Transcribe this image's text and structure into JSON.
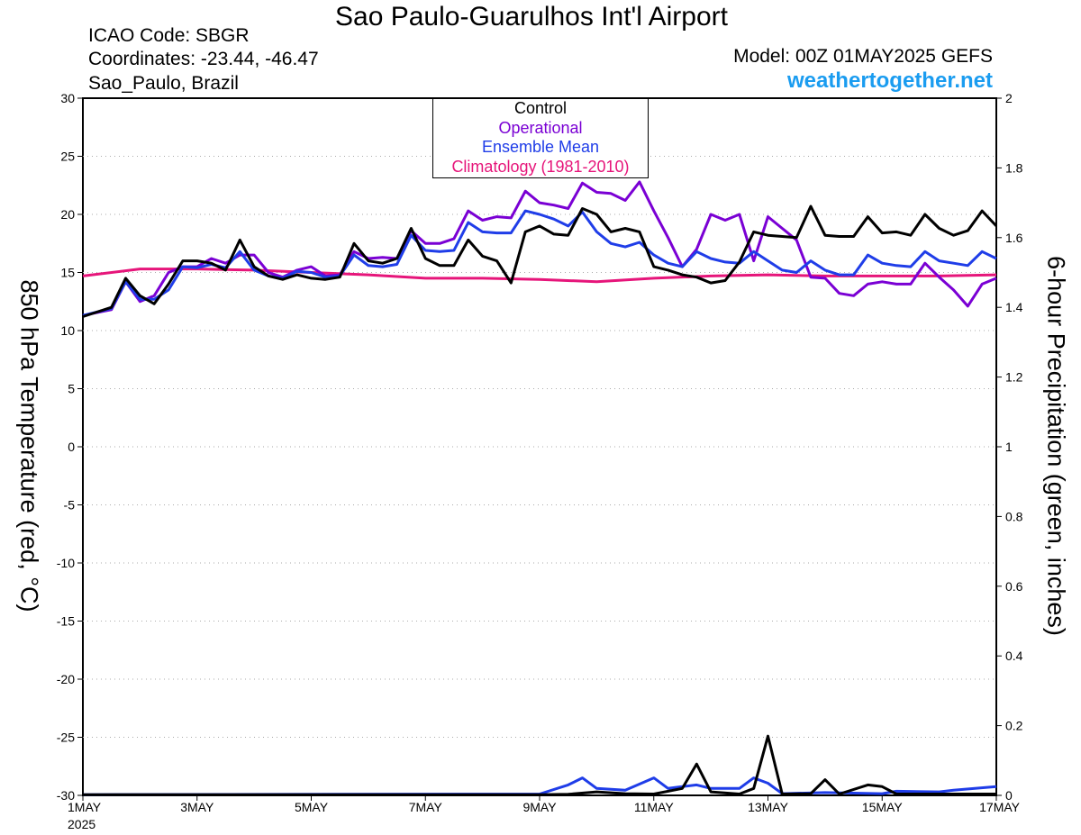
{
  "header": {
    "title": "Sao Paulo-Guarulhos Int'l Airport",
    "icao": "ICAO Code: SBGR",
    "coords": "Coordinates: -23.44, -46.47",
    "place": "Sao_Paulo, Brazil",
    "model": "Model: 00Z 01MAY2025 GEFS",
    "site": "weathertogether.net"
  },
  "legend": {
    "control": "Control",
    "operational": "Operational",
    "ensemble_mean": "Ensemble Mean",
    "climatology": "Climatology (1981-2010)"
  },
  "colors": {
    "control": "#000000",
    "operational": "#7a00d4",
    "ensemble_mean": "#1f3de8",
    "climatology": "#e6157a",
    "members_temp": "#f0504a",
    "members_precip": "#3fd23f",
    "site": "#1a9cf0"
  },
  "chart_data": {
    "type": "line",
    "ylabel_left": "850 hPa Temperature (red, °C)",
    "ylabel_right": "6-hour Precipitation (green, inches)",
    "ylim_left": [
      -30,
      30
    ],
    "ylim_right": [
      0,
      2
    ],
    "yticks_left": [
      "30",
      "25",
      "20",
      "15",
      "10",
      "5",
      "0",
      "-5",
      "-10",
      "-15",
      "-20",
      "-25",
      "-30"
    ],
    "yticks_right": [
      "2",
      "1.8",
      "1.6",
      "1.4",
      "1.2",
      "1",
      "0.8",
      "0.6",
      "0.4",
      "0.2",
      "0"
    ],
    "x_days": [
      1,
      17
    ],
    "x_ticks": [
      {
        "day": 1,
        "label": "1MAY",
        "sub": "2025"
      },
      {
        "day": 3,
        "label": "3MAY"
      },
      {
        "day": 5,
        "label": "5MAY"
      },
      {
        "day": 7,
        "label": "7MAY"
      },
      {
        "day": 9,
        "label": "9MAY"
      },
      {
        "day": 11,
        "label": "11MAY"
      },
      {
        "day": 13,
        "label": "13MAY"
      },
      {
        "day": 15,
        "label": "15MAY"
      },
      {
        "day": 17,
        "label": "17MAY"
      }
    ],
    "grid": "dotted horizontal",
    "legend_position": "top-center",
    "temperature": {
      "control": [
        [
          1,
          11.2
        ],
        [
          1.5,
          12
        ],
        [
          1.75,
          14.5
        ],
        [
          2,
          13
        ],
        [
          2.25,
          12.3
        ],
        [
          2.5,
          14
        ],
        [
          2.75,
          16
        ],
        [
          3,
          16
        ],
        [
          3.25,
          15.8
        ],
        [
          3.5,
          15.2
        ],
        [
          3.75,
          17.8
        ],
        [
          4,
          15.5
        ],
        [
          4.25,
          14.7
        ],
        [
          4.5,
          14.4
        ],
        [
          4.75,
          14.8
        ],
        [
          5,
          14.5
        ],
        [
          5.25,
          14.4
        ],
        [
          5.5,
          14.6
        ],
        [
          5.75,
          17.5
        ],
        [
          6,
          16
        ],
        [
          6.25,
          15.8
        ],
        [
          6.5,
          16.2
        ],
        [
          6.75,
          18.8
        ],
        [
          7,
          16.2
        ],
        [
          7.25,
          15.6
        ],
        [
          7.5,
          15.6
        ],
        [
          7.75,
          17.8
        ],
        [
          8,
          16.4
        ],
        [
          8.25,
          16
        ],
        [
          8.5,
          14.1
        ],
        [
          8.75,
          18.5
        ],
        [
          9,
          19
        ],
        [
          9.25,
          18.3
        ],
        [
          9.5,
          18.2
        ],
        [
          9.75,
          20.5
        ],
        [
          10,
          20
        ],
        [
          10.25,
          18.5
        ],
        [
          10.5,
          18.8
        ],
        [
          10.75,
          18.5
        ],
        [
          11,
          15.5
        ],
        [
          11.25,
          15.2
        ],
        [
          11.5,
          14.8
        ],
        [
          11.75,
          14.6
        ],
        [
          12,
          14.1
        ],
        [
          12.25,
          14.3
        ],
        [
          12.5,
          15.9
        ],
        [
          12.75,
          18.5
        ],
        [
          13,
          18.2
        ],
        [
          13.25,
          18.1
        ],
        [
          13.5,
          18
        ],
        [
          13.75,
          20.7
        ],
        [
          14,
          18.2
        ],
        [
          14.25,
          18.1
        ],
        [
          14.5,
          18.1
        ],
        [
          14.75,
          19.8
        ],
        [
          15,
          18.4
        ],
        [
          15.25,
          18.5
        ],
        [
          15.5,
          18.2
        ],
        [
          15.75,
          20
        ],
        [
          16,
          18.8
        ],
        [
          16.25,
          18.2
        ],
        [
          16.5,
          18.6
        ],
        [
          16.75,
          20.3
        ],
        [
          17,
          19
        ]
      ],
      "operational": [
        [
          1,
          11.3
        ],
        [
          1.5,
          11.8
        ],
        [
          1.75,
          14.2
        ],
        [
          2,
          12.5
        ],
        [
          2.25,
          13
        ],
        [
          2.5,
          15
        ],
        [
          2.75,
          15.5
        ],
        [
          3,
          15.5
        ],
        [
          3.25,
          16.2
        ],
        [
          3.5,
          15.8
        ],
        [
          3.75,
          16.5
        ],
        [
          4,
          16.5
        ],
        [
          4.25,
          15
        ],
        [
          4.5,
          14.6
        ],
        [
          4.75,
          15.2
        ],
        [
          5,
          15.5
        ],
        [
          5.25,
          14.7
        ],
        [
          5.5,
          14.8
        ],
        [
          5.75,
          16.8
        ],
        [
          6,
          16.2
        ],
        [
          6.25,
          16.3
        ],
        [
          6.5,
          16.2
        ],
        [
          6.75,
          18.6
        ],
        [
          7,
          17.5
        ],
        [
          7.25,
          17.5
        ],
        [
          7.5,
          17.9
        ],
        [
          7.75,
          20.3
        ],
        [
          8,
          19.5
        ],
        [
          8.25,
          19.8
        ],
        [
          8.5,
          19.7
        ],
        [
          8.75,
          22
        ],
        [
          9,
          21
        ],
        [
          9.25,
          20.8
        ],
        [
          9.5,
          20.5
        ],
        [
          9.75,
          22.7
        ],
        [
          10,
          21.9
        ],
        [
          10.25,
          21.8
        ],
        [
          10.5,
          21.2
        ],
        [
          10.75,
          22.8
        ],
        [
          11,
          20.3
        ],
        [
          11.25,
          18
        ],
        [
          11.5,
          15.5
        ],
        [
          11.75,
          17
        ],
        [
          12,
          20
        ],
        [
          12.25,
          19.5
        ],
        [
          12.5,
          20
        ],
        [
          12.75,
          16
        ],
        [
          13,
          19.8
        ],
        [
          13.25,
          18.8
        ],
        [
          13.5,
          17.8
        ],
        [
          13.75,
          14.6
        ],
        [
          14,
          14.5
        ],
        [
          14.25,
          13.2
        ],
        [
          14.5,
          13
        ],
        [
          14.75,
          14
        ],
        [
          15,
          14.2
        ],
        [
          15.25,
          14
        ],
        [
          15.5,
          14
        ],
        [
          15.75,
          15.8
        ],
        [
          16,
          14.6
        ],
        [
          16.25,
          13.5
        ],
        [
          16.5,
          12.1
        ],
        [
          16.75,
          14
        ],
        [
          17,
          14.5
        ]
      ],
      "ensemble_mean": [
        [
          1,
          11.3
        ],
        [
          1.5,
          11.9
        ],
        [
          1.75,
          14.2
        ],
        [
          2,
          12.7
        ],
        [
          2.25,
          12.7
        ],
        [
          2.5,
          13.5
        ],
        [
          2.75,
          15.5
        ],
        [
          3,
          15.4
        ],
        [
          3.25,
          15.7
        ],
        [
          3.5,
          15.4
        ],
        [
          3.75,
          16.8
        ],
        [
          4,
          15.2
        ],
        [
          4.25,
          14.7
        ],
        [
          4.5,
          14.5
        ],
        [
          4.75,
          15.1
        ],
        [
          5,
          15
        ],
        [
          5.25,
          14.6
        ],
        [
          5.5,
          14.7
        ],
        [
          5.75,
          16.5
        ],
        [
          6,
          15.6
        ],
        [
          6.25,
          15.5
        ],
        [
          6.5,
          15.7
        ],
        [
          6.75,
          18.2
        ],
        [
          7,
          16.9
        ],
        [
          7.25,
          16.8
        ],
        [
          7.5,
          16.9
        ],
        [
          7.75,
          19.3
        ],
        [
          8,
          18.5
        ],
        [
          8.25,
          18.4
        ],
        [
          8.5,
          18.4
        ],
        [
          8.75,
          20.3
        ],
        [
          9,
          20
        ],
        [
          9.25,
          19.6
        ],
        [
          9.5,
          19
        ],
        [
          9.75,
          20.2
        ],
        [
          10,
          18.5
        ],
        [
          10.25,
          17.5
        ],
        [
          10.5,
          17.2
        ],
        [
          10.75,
          17.6
        ],
        [
          11,
          16.5
        ],
        [
          11.25,
          15.8
        ],
        [
          11.5,
          15.5
        ],
        [
          11.75,
          16.8
        ],
        [
          12,
          16.2
        ],
        [
          12.25,
          15.9
        ],
        [
          12.5,
          15.8
        ],
        [
          12.75,
          16.8
        ],
        [
          13,
          16
        ],
        [
          13.25,
          15.2
        ],
        [
          13.5,
          15
        ],
        [
          13.75,
          16
        ],
        [
          14,
          15.2
        ],
        [
          14.25,
          14.8
        ],
        [
          14.5,
          14.8
        ],
        [
          14.75,
          16.5
        ],
        [
          15,
          15.8
        ],
        [
          15.25,
          15.6
        ],
        [
          15.5,
          15.5
        ],
        [
          15.75,
          16.8
        ],
        [
          16,
          16
        ],
        [
          16.25,
          15.8
        ],
        [
          16.5,
          15.6
        ],
        [
          16.75,
          16.8
        ],
        [
          17,
          16.2
        ]
      ],
      "climatology": [
        [
          1,
          14.7
        ],
        [
          2,
          15.3
        ],
        [
          3,
          15.3
        ],
        [
          4,
          15.2
        ],
        [
          5,
          15
        ],
        [
          6,
          14.8
        ],
        [
          7,
          14.5
        ],
        [
          8,
          14.5
        ],
        [
          9,
          14.4
        ],
        [
          10,
          14.2
        ],
        [
          11,
          14.5
        ],
        [
          12,
          14.7
        ],
        [
          13,
          14.8
        ],
        [
          14,
          14.7
        ],
        [
          15,
          14.7
        ],
        [
          16,
          14.7
        ],
        [
          17,
          14.8
        ]
      ]
    },
    "precipitation": {
      "control": [
        [
          1,
          0.002
        ],
        [
          9,
          0.002
        ],
        [
          9.5,
          0.003
        ],
        [
          10,
          0.01
        ],
        [
          10.5,
          0.005
        ],
        [
          11,
          0.004
        ],
        [
          11.5,
          0.02
        ],
        [
          11.75,
          0.09
        ],
        [
          12,
          0.01
        ],
        [
          12.5,
          0.004
        ],
        [
          12.75,
          0.02
        ],
        [
          13,
          0.17
        ],
        [
          13.25,
          0.004
        ],
        [
          13.75,
          0.005
        ],
        [
          14,
          0.045
        ],
        [
          14.25,
          0.004
        ],
        [
          14.75,
          0.03
        ],
        [
          15,
          0.025
        ],
        [
          15.25,
          0.004
        ],
        [
          17,
          0.004
        ]
      ],
      "ensemble_mean": [
        [
          1,
          0.002
        ],
        [
          9,
          0.004
        ],
        [
          9.5,
          0.03
        ],
        [
          9.75,
          0.05
        ],
        [
          10,
          0.02
        ],
        [
          10.5,
          0.015
        ],
        [
          11,
          0.05
        ],
        [
          11.25,
          0.02
        ],
        [
          11.5,
          0.025
        ],
        [
          11.75,
          0.03
        ],
        [
          12,
          0.02
        ],
        [
          12.5,
          0.02
        ],
        [
          12.75,
          0.05
        ],
        [
          13,
          0.035
        ],
        [
          13.25,
          0.005
        ],
        [
          14,
          0.008
        ],
        [
          15,
          0.005
        ],
        [
          15.25,
          0.012
        ],
        [
          16,
          0.01
        ],
        [
          16.25,
          0.015
        ],
        [
          17,
          0.025
        ]
      ]
    }
  }
}
